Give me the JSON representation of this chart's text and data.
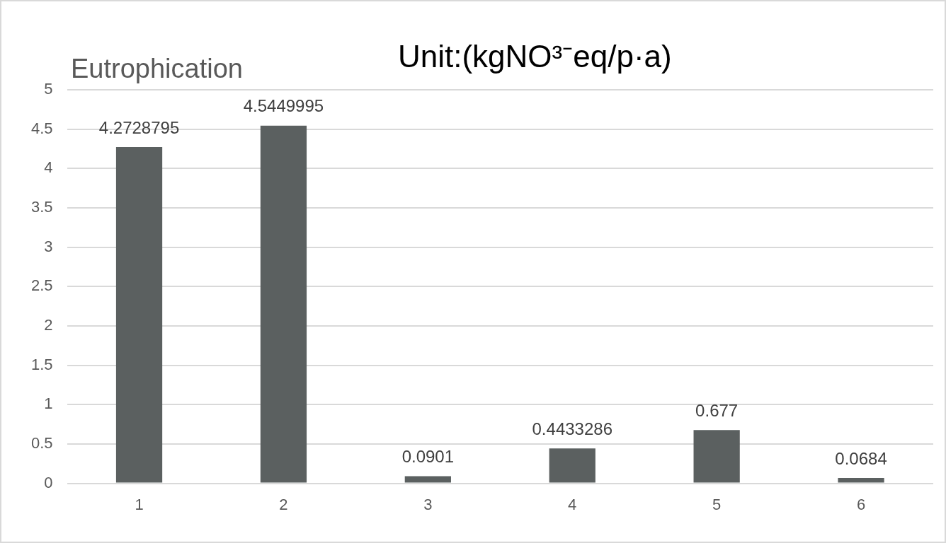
{
  "chart_data": {
    "type": "bar",
    "title": "Eutrophication",
    "subtitle": "Unit:(kgNO³⁻eq/p·a)",
    "categories": [
      "1",
      "2",
      "3",
      "4",
      "5",
      "6"
    ],
    "values": [
      4.2728795,
      4.5449995,
      0.0901,
      0.4433286,
      0.677,
      0.0684
    ],
    "color": "#5b6060",
    "ylim": [
      0,
      5
    ],
    "yticks": [
      0,
      0.5,
      1,
      1.5,
      2,
      2.5,
      3,
      3.5,
      4,
      4.5,
      5
    ],
    "grid": "y",
    "data_labels": true,
    "legend": false
  }
}
